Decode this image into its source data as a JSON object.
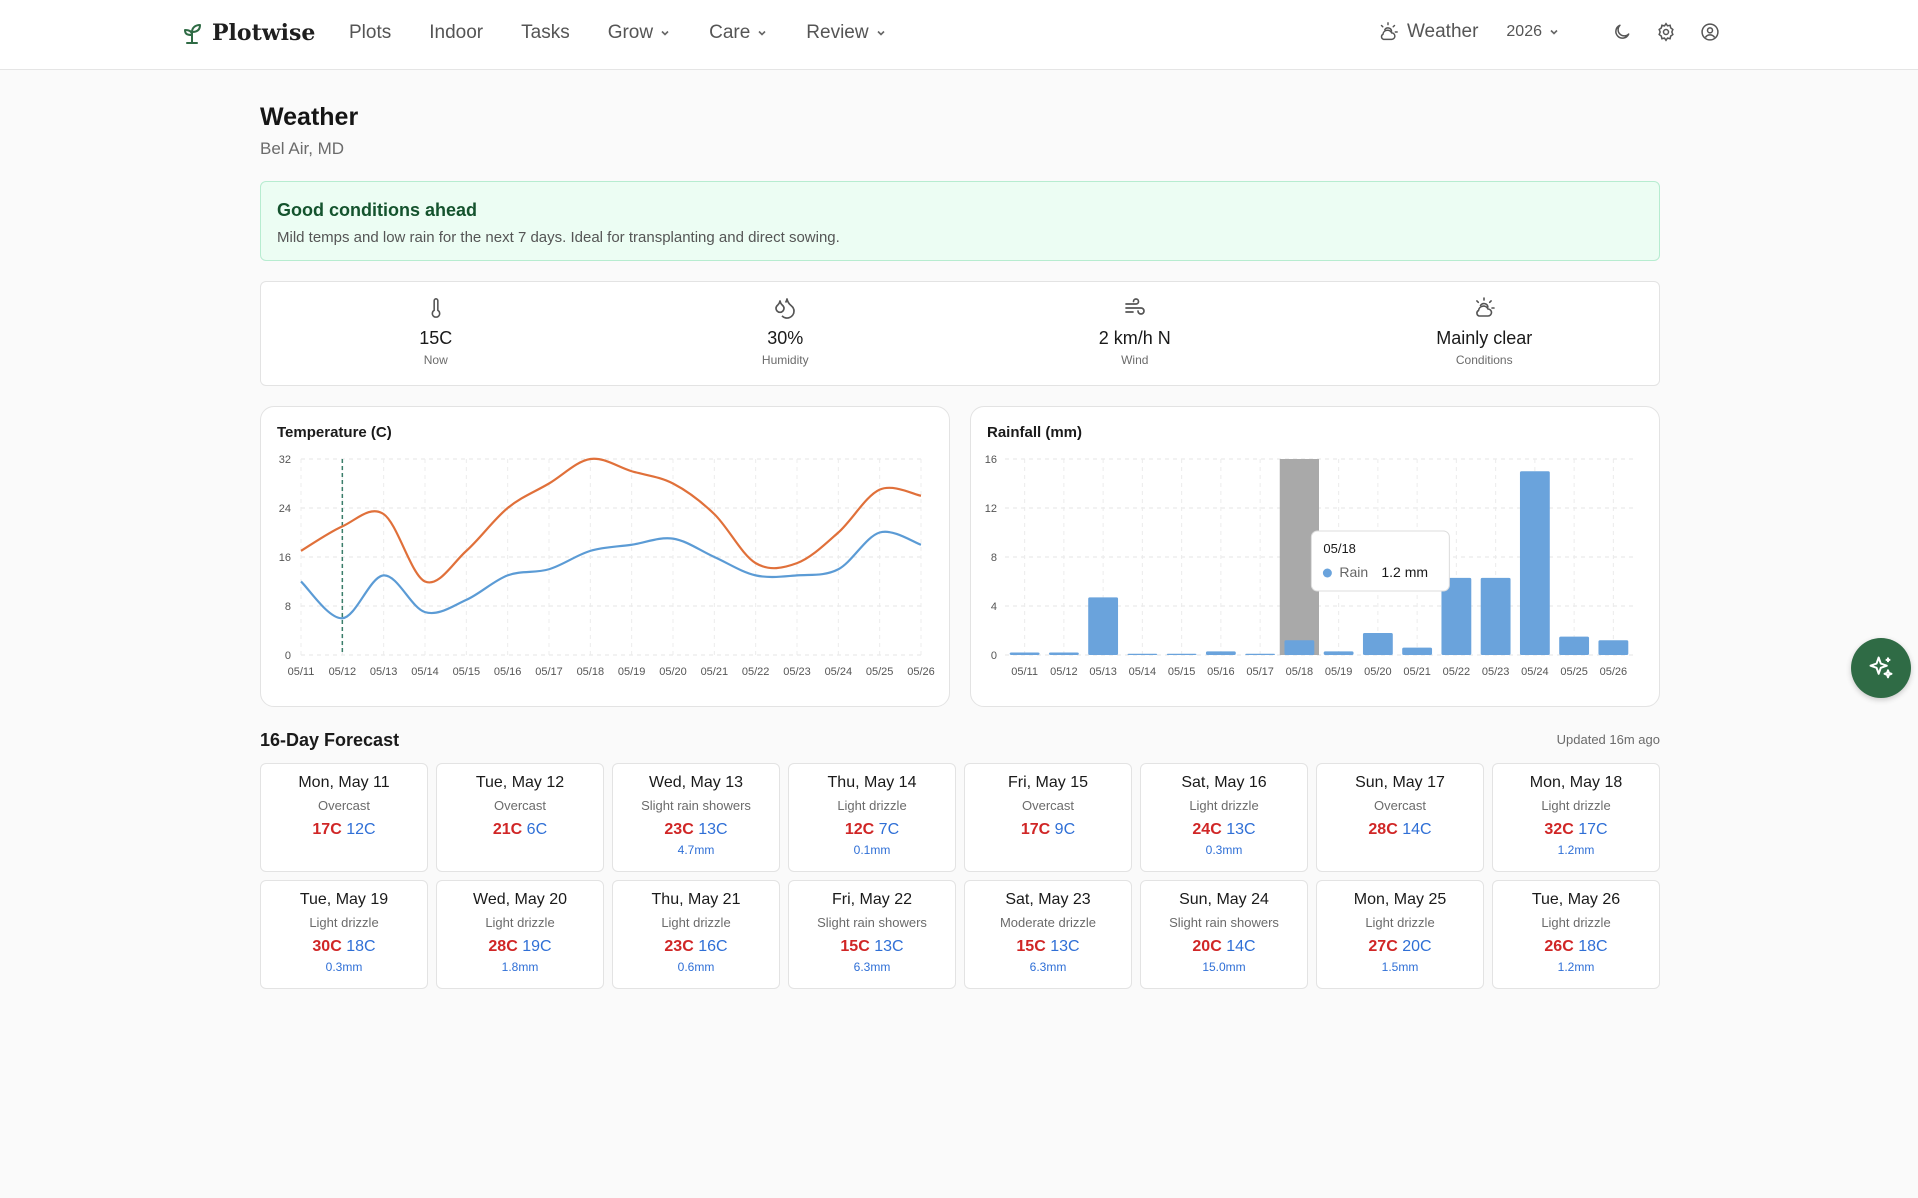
{
  "nav": {
    "brand": "Plotwise",
    "links": [
      "Plots",
      "Indoor",
      "Tasks"
    ],
    "dropdowns": [
      "Grow",
      "Care",
      "Review"
    ],
    "weather_label": "Weather",
    "year": "2026"
  },
  "page": {
    "title": "Weather",
    "location": "Bel Air, MD"
  },
  "alert": {
    "title": "Good conditions ahead",
    "text": "Mild temps and low rain for the next 7 days. Ideal for transplanting and direct sowing."
  },
  "stats": [
    {
      "icon": "thermometer-icon",
      "value": "15C",
      "label": "Now"
    },
    {
      "icon": "droplets-icon",
      "value": "30%",
      "label": "Humidity"
    },
    {
      "icon": "wind-icon",
      "value": "2 km/h N",
      "label": "Wind"
    },
    {
      "icon": "cloud-sun-icon",
      "value": "Mainly clear",
      "label": "Conditions"
    }
  ],
  "chart_data": [
    {
      "type": "line",
      "title": "Temperature (C)",
      "x": [
        "05/11",
        "05/12",
        "05/13",
        "05/14",
        "05/15",
        "05/16",
        "05/17",
        "05/18",
        "05/19",
        "05/20",
        "05/21",
        "05/22",
        "05/23",
        "05/24",
        "05/25",
        "05/26"
      ],
      "ylim": [
        0,
        32
      ],
      "yticks": [
        0,
        8,
        16,
        24,
        32
      ],
      "grid": true,
      "highlight_x": "05/12",
      "series": [
        {
          "values": [
            17,
            21,
            23,
            12,
            17,
            24,
            28,
            32,
            30,
            28,
            23,
            15,
            15,
            20,
            27,
            26
          ],
          "color": "#e0703a"
        },
        {
          "values": [
            12,
            6,
            13,
            7,
            9,
            13,
            14,
            17,
            18,
            19,
            16,
            13,
            13,
            14,
            20,
            18
          ],
          "color": "#5b9bd5"
        }
      ]
    },
    {
      "type": "bar",
      "title": "Rainfall (mm)",
      "categories": [
        "05/11",
        "05/12",
        "05/13",
        "05/14",
        "05/15",
        "05/16",
        "05/17",
        "05/18",
        "05/19",
        "05/20",
        "05/21",
        "05/22",
        "05/23",
        "05/24",
        "05/25",
        "05/26"
      ],
      "values": [
        0.2,
        0.2,
        4.7,
        0.1,
        0.1,
        0.3,
        0.1,
        1.2,
        0.3,
        1.8,
        0.6,
        6.3,
        6.3,
        15.0,
        1.5,
        1.2
      ],
      "ylim": [
        0,
        16
      ],
      "yticks": [
        0,
        4,
        8,
        12,
        16
      ],
      "grid": true,
      "color": "#6aa3dc",
      "hover": {
        "category": "05/18",
        "series": "Rain",
        "value": "1.2 mm"
      }
    }
  ],
  "forecast": {
    "title": "16-Day Forecast",
    "updated": "Updated 16m ago",
    "days": [
      {
        "date": "Mon, May 11",
        "cond": "Overcast",
        "hi": "17C",
        "lo": "12C",
        "rain": ""
      },
      {
        "date": "Tue, May 12",
        "cond": "Overcast",
        "hi": "21C",
        "lo": "6C",
        "rain": ""
      },
      {
        "date": "Wed, May 13",
        "cond": "Slight rain showers",
        "hi": "23C",
        "lo": "13C",
        "rain": "4.7mm"
      },
      {
        "date": "Thu, May 14",
        "cond": "Light drizzle",
        "hi": "12C",
        "lo": "7C",
        "rain": "0.1mm"
      },
      {
        "date": "Fri, May 15",
        "cond": "Overcast",
        "hi": "17C",
        "lo": "9C",
        "rain": ""
      },
      {
        "date": "Sat, May 16",
        "cond": "Light drizzle",
        "hi": "24C",
        "lo": "13C",
        "rain": "0.3mm"
      },
      {
        "date": "Sun, May 17",
        "cond": "Overcast",
        "hi": "28C",
        "lo": "14C",
        "rain": ""
      },
      {
        "date": "Mon, May 18",
        "cond": "Light drizzle",
        "hi": "32C",
        "lo": "17C",
        "rain": "1.2mm"
      },
      {
        "date": "Tue, May 19",
        "cond": "Light drizzle",
        "hi": "30C",
        "lo": "18C",
        "rain": "0.3mm"
      },
      {
        "date": "Wed, May 20",
        "cond": "Light drizzle",
        "hi": "28C",
        "lo": "19C",
        "rain": "1.8mm"
      },
      {
        "date": "Thu, May 21",
        "cond": "Light drizzle",
        "hi": "23C",
        "lo": "16C",
        "rain": "0.6mm"
      },
      {
        "date": "Fri, May 22",
        "cond": "Slight rain showers",
        "hi": "15C",
        "lo": "13C",
        "rain": "6.3mm"
      },
      {
        "date": "Sat, May 23",
        "cond": "Moderate drizzle",
        "hi": "15C",
        "lo": "13C",
        "rain": "6.3mm"
      },
      {
        "date": "Sun, May 24",
        "cond": "Slight rain showers",
        "hi": "20C",
        "lo": "14C",
        "rain": "15.0mm"
      },
      {
        "date": "Mon, May 25",
        "cond": "Light drizzle",
        "hi": "27C",
        "lo": "20C",
        "rain": "1.5mm"
      },
      {
        "date": "Tue, May 26",
        "cond": "Light drizzle",
        "hi": "26C",
        "lo": "18C",
        "rain": "1.2mm"
      }
    ]
  }
}
